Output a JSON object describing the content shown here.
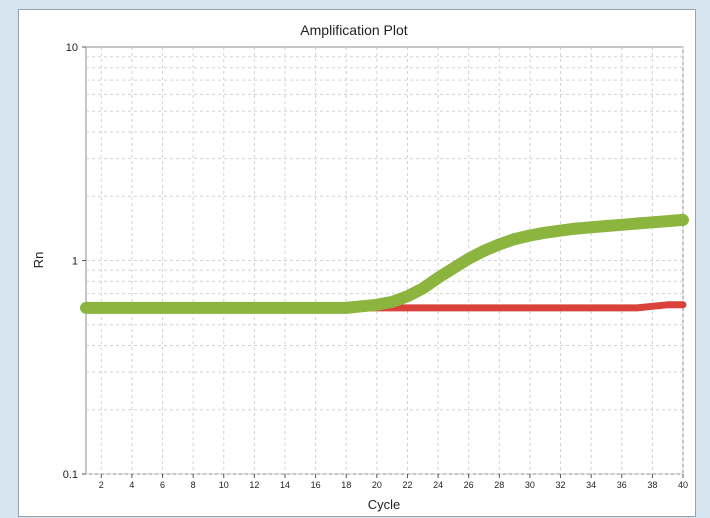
{
  "chart_data": {
    "type": "line",
    "title": "Amplification Plot",
    "xlabel": "Cycle",
    "ylabel": "Rn",
    "xlim": [
      1,
      40
    ],
    "ylim": [
      0.1,
      10
    ],
    "y_scale": "log",
    "x_ticks": [
      2,
      4,
      6,
      8,
      10,
      12,
      14,
      16,
      18,
      20,
      22,
      24,
      26,
      28,
      30,
      32,
      34,
      36,
      38,
      40
    ],
    "y_ticks": [
      {
        "value": 0.1,
        "label": "0.1"
      },
      {
        "value": 1,
        "label": "1"
      },
      {
        "value": 10,
        "label": "10"
      }
    ],
    "grid": true,
    "legend": "none",
    "x": [
      1,
      2,
      3,
      4,
      5,
      6,
      7,
      8,
      9,
      10,
      11,
      12,
      13,
      14,
      15,
      16,
      17,
      18,
      19,
      20,
      21,
      22,
      23,
      24,
      25,
      26,
      27,
      28,
      29,
      30,
      31,
      32,
      33,
      34,
      35,
      36,
      37,
      38,
      39,
      40
    ],
    "series": [
      {
        "color": "#d9413a",
        "values": [
          0.6,
          0.6,
          0.6,
          0.6,
          0.6,
          0.6,
          0.6,
          0.6,
          0.6,
          0.6,
          0.6,
          0.6,
          0.6,
          0.6,
          0.6,
          0.6,
          0.6,
          0.6,
          0.6,
          0.6,
          0.6,
          0.6,
          0.6,
          0.6,
          0.6,
          0.6,
          0.6,
          0.6,
          0.6,
          0.6,
          0.6,
          0.6,
          0.6,
          0.6,
          0.6,
          0.6,
          0.6,
          0.61,
          0.62,
          0.62
        ]
      },
      {
        "color": "#8cb53f",
        "values": [
          0.6,
          0.6,
          0.6,
          0.6,
          0.6,
          0.6,
          0.6,
          0.6,
          0.6,
          0.6,
          0.6,
          0.6,
          0.6,
          0.6,
          0.6,
          0.6,
          0.6,
          0.6,
          0.61,
          0.62,
          0.64,
          0.68,
          0.74,
          0.83,
          0.92,
          1.02,
          1.11,
          1.19,
          1.26,
          1.31,
          1.35,
          1.38,
          1.41,
          1.43,
          1.45,
          1.47,
          1.49,
          1.51,
          1.53,
          1.55
        ]
      }
    ]
  }
}
